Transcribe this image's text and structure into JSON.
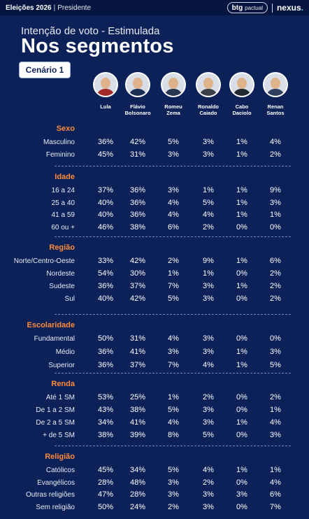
{
  "header": {
    "election": "Eleições 2026",
    "separator": "|",
    "office": "Presidente",
    "brand_btg": "btg",
    "brand_pactual": "pactual",
    "brand_nexus": "nexus",
    "brand_nexus_dot": "."
  },
  "subtitle": "Intenção de voto - Estimulada",
  "title": "Nos segmentos",
  "scenario": "Cenário 1",
  "candidates": [
    {
      "name1": "Lula",
      "name2": "",
      "color": "#a52a2a"
    },
    {
      "name1": "Flávio",
      "name2": "Bolsonaro",
      "color": "#1c2f55"
    },
    {
      "name1": "Romeu",
      "name2": "Zema",
      "color": "#27374f"
    },
    {
      "name1": "Ronaldo",
      "name2": "Caiado",
      "color": "#3a3f4a"
    },
    {
      "name1": "Cabo",
      "name2": "Daciolo",
      "color": "#222831"
    },
    {
      "name1": "Renan",
      "name2": "Santos",
      "color": "#2f3f5f"
    }
  ],
  "sections": [
    {
      "title": "Sexo",
      "rows": [
        {
          "label": "Masculino",
          "values": [
            "36%",
            "42%",
            "5%",
            "3%",
            "1%",
            "4%"
          ]
        },
        {
          "label": "Feminino",
          "values": [
            "45%",
            "31%",
            "3%",
            "3%",
            "1%",
            "2%"
          ]
        }
      ]
    },
    {
      "title": "Idade",
      "rows": [
        {
          "label": "16 a 24",
          "values": [
            "37%",
            "36%",
            "3%",
            "1%",
            "1%",
            "9%"
          ]
        },
        {
          "label": "25 a 40",
          "values": [
            "40%",
            "36%",
            "4%",
            "5%",
            "1%",
            "3%"
          ]
        },
        {
          "label": "41 a 59",
          "values": [
            "40%",
            "36%",
            "4%",
            "4%",
            "1%",
            "1%"
          ]
        },
        {
          "label": "60 ou +",
          "values": [
            "46%",
            "38%",
            "6%",
            "2%",
            "0%",
            "0%"
          ]
        }
      ]
    },
    {
      "title": "Região",
      "rows": [
        {
          "label": "Norte/Centro-Oeste",
          "values": [
            "33%",
            "42%",
            "2%",
            "9%",
            "1%",
            "6%"
          ]
        },
        {
          "label": "Nordeste",
          "values": [
            "54%",
            "30%",
            "1%",
            "1%",
            "0%",
            "2%"
          ]
        },
        {
          "label": "Sudeste",
          "values": [
            "36%",
            "37%",
            "7%",
            "3%",
            "1%",
            "2%"
          ]
        },
        {
          "label": "Sul",
          "values": [
            "40%",
            "42%",
            "5%",
            "3%",
            "0%",
            "2%"
          ]
        }
      ]
    },
    {
      "title": "Escolaridade",
      "rows": [
        {
          "label": "Fundamental",
          "values": [
            "50%",
            "31%",
            "4%",
            "3%",
            "0%",
            "0%"
          ]
        },
        {
          "label": "Médio",
          "values": [
            "36%",
            "41%",
            "3%",
            "3%",
            "1%",
            "3%"
          ]
        },
        {
          "label": "Superior",
          "values": [
            "36%",
            "37%",
            "7%",
            "4%",
            "1%",
            "5%"
          ]
        }
      ]
    },
    {
      "title": "Renda",
      "rows": [
        {
          "label": "Até 1 SM",
          "values": [
            "53%",
            "25%",
            "1%",
            "2%",
            "0%",
            "2%"
          ]
        },
        {
          "label": "De 1 a 2 SM",
          "values": [
            "43%",
            "38%",
            "5%",
            "3%",
            "0%",
            "1%"
          ]
        },
        {
          "label": "De 2 a 5 SM",
          "values": [
            "34%",
            "41%",
            "4%",
            "3%",
            "1%",
            "4%"
          ]
        },
        {
          "label": "+ de 5 SM",
          "values": [
            "38%",
            "39%",
            "8%",
            "5%",
            "0%",
            "3%"
          ]
        }
      ]
    },
    {
      "title": "Religião",
      "rows": [
        {
          "label": "Católicos",
          "values": [
            "45%",
            "34%",
            "5%",
            "4%",
            "1%",
            "1%"
          ]
        },
        {
          "label": "Evangélicos",
          "values": [
            "28%",
            "48%",
            "3%",
            "2%",
            "0%",
            "4%"
          ]
        },
        {
          "label": "Outras religiões",
          "values": [
            "47%",
            "28%",
            "3%",
            "3%",
            "3%",
            "6%"
          ]
        },
        {
          "label": "Sem religião",
          "values": [
            "50%",
            "24%",
            "2%",
            "3%",
            "0%",
            "7%"
          ]
        }
      ]
    }
  ]
}
